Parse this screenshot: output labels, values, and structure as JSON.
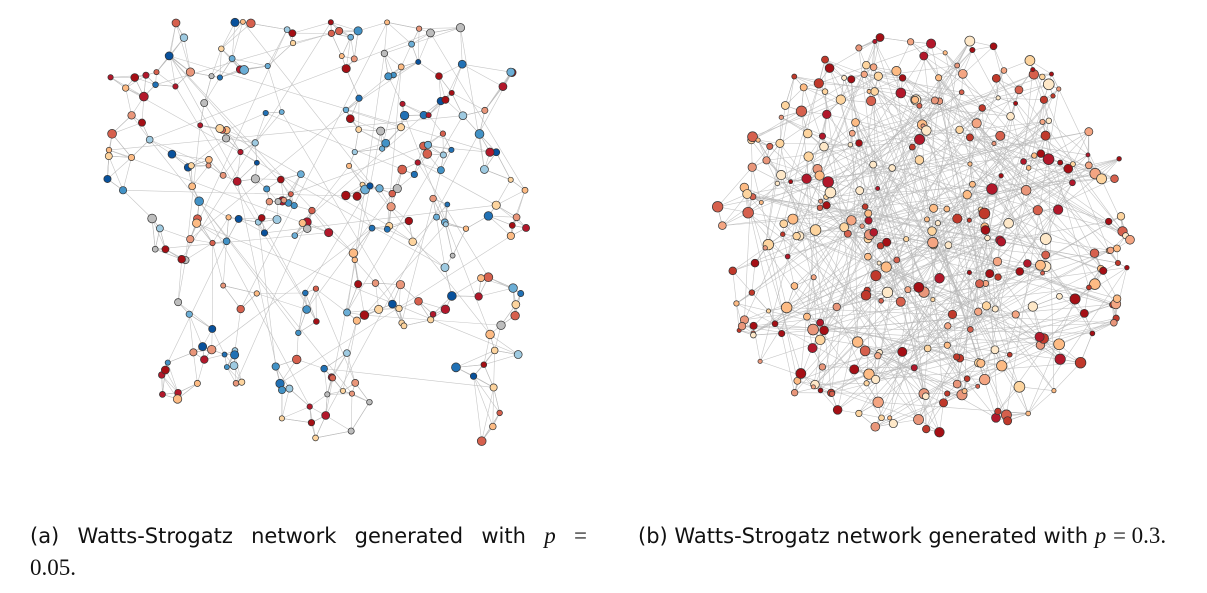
{
  "subfigures": [
    {
      "caption": {
        "label": "(a)",
        "text": "Watts-Strogatz network generated with",
        "variable": "p",
        "equation": "= 0.05."
      }
    },
    {
      "caption": {
        "label": "(b)",
        "text": "Watts-Strogatz network generated with",
        "variable": "p",
        "equation": "= 0.3."
      }
    }
  ]
}
